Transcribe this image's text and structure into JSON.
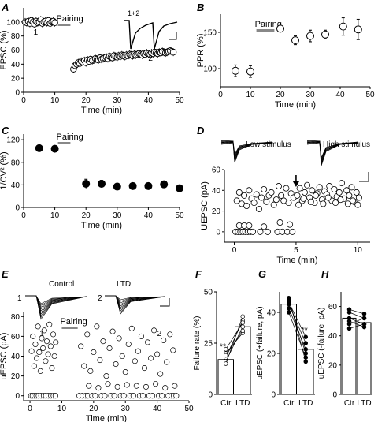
{
  "figure": {
    "panel_letters": [
      "A",
      "B",
      "C",
      "D",
      "E",
      "F",
      "G",
      "H"
    ],
    "pairing_label": "Pairing"
  },
  "chart_data": [
    {
      "id": "A",
      "type": "scatter",
      "title": "",
      "xlabel": "Time (min)",
      "ylabel": "EPSC (%)",
      "xlim": [
        0,
        50
      ],
      "ylim": [
        0,
        120
      ],
      "xticks": [
        0,
        10,
        20,
        30,
        40,
        50
      ],
      "yticks": [
        0,
        20,
        40,
        60,
        80,
        100
      ],
      "pairing": [
        11,
        15
      ],
      "annotations": [
        "1",
        "2"
      ],
      "inset_label": "1+2",
      "series": [
        {
          "x": [
            0.5,
            1,
            1.5,
            2,
            2.5,
            3,
            3.5,
            4,
            4.5,
            5,
            5.5,
            6,
            6.5,
            7,
            7.5,
            8,
            8.5,
            9,
            9.5,
            10,
            16,
            16.5,
            17,
            17.5,
            18,
            18.5,
            19,
            19.5,
            20,
            20.5,
            21,
            21.5,
            22,
            22.5,
            23,
            23.5,
            24,
            24.5,
            25,
            25.5,
            26,
            26.5,
            27,
            27.5,
            28,
            28.5,
            29,
            29.5,
            30,
            30.5,
            31,
            31.5,
            32,
            32.5,
            33,
            33.5,
            34,
            34.5,
            35,
            35.5,
            36,
            36.5,
            37,
            37.5,
            38,
            38.5,
            39,
            39.5,
            40,
            40.5,
            41,
            41.5,
            42,
            42.5,
            43,
            43.5,
            44,
            44.5,
            45,
            45.5,
            46,
            46.5,
            47,
            47.5,
            48
          ],
          "y": [
            100,
            99,
            101,
            98,
            102,
            100,
            97,
            101,
            99,
            100,
            103,
            98,
            100,
            101,
            99,
            102,
            98,
            100,
            101,
            99,
            33,
            38,
            40,
            42,
            41,
            44,
            43,
            45,
            42,
            46,
            44,
            47,
            45,
            46,
            48,
            47,
            46,
            49,
            47,
            48,
            49,
            50,
            48,
            51,
            50,
            49,
            52,
            51,
            50,
            52,
            51,
            53,
            52,
            51,
            53,
            52,
            54,
            53,
            52,
            54,
            53,
            54,
            55,
            54,
            53,
            55,
            54,
            56,
            55,
            54,
            56,
            55,
            57,
            56,
            55,
            57,
            56,
            58,
            57,
            56,
            57,
            58,
            59,
            58,
            57
          ]
        }
      ]
    },
    {
      "id": "B",
      "type": "scatter",
      "title": "",
      "xlabel": "Time (min)",
      "ylabel": "PPR (%)",
      "xlim": [
        0,
        50
      ],
      "ylim": [
        75,
        175
      ],
      "xticks": [
        0,
        10,
        20,
        30,
        40,
        50
      ],
      "yticks": [
        100,
        150
      ],
      "pairing": [
        12,
        18
      ],
      "series": [
        {
          "x": [
            5,
            10,
            20,
            25,
            30,
            35,
            41,
            46
          ],
          "y": [
            97,
            96,
            155,
            139,
            145,
            147,
            158,
            154
          ],
          "err": [
            8,
            8,
            3,
            6,
            8,
            6,
            12,
            14
          ]
        }
      ]
    },
    {
      "id": "C",
      "type": "scatter",
      "title": "",
      "xlabel": "Time (min)",
      "ylabel": "1/CV² (%)",
      "xlim": [
        0,
        50
      ],
      "ylim": [
        0,
        130
      ],
      "xticks": [
        0,
        10,
        20,
        30,
        40,
        50
      ],
      "yticks": [
        0,
        40,
        80,
        120
      ],
      "pairing": [
        11,
        15
      ],
      "series": [
        {
          "x": [
            5,
            10,
            20,
            25,
            30,
            35,
            40,
            45,
            50
          ],
          "y": [
            105,
            104,
            42,
            42,
            37,
            38,
            38,
            41,
            34
          ],
          "err": [
            5,
            4,
            8,
            6,
            5,
            5,
            5,
            5,
            4
          ]
        }
      ]
    },
    {
      "id": "D",
      "type": "scatter",
      "title": "",
      "xlabel": "Time (min)",
      "ylabel": "UEPSC (pA)",
      "xlim": [
        -0.8,
        11
      ],
      "ylim": [
        -10,
        60
      ],
      "xticks": [
        0,
        5,
        10
      ],
      "yticks": [
        0,
        20,
        40,
        60
      ],
      "trace_labels": [
        "Low stimulus",
        "High stimulus"
      ],
      "arrow_at": 5,
      "series": [
        {
          "name": "low_responses",
          "x": [
            0.2,
            0.4,
            0.6,
            0.8,
            1,
            1.2,
            1.4,
            1.6,
            1.8,
            2,
            2.2,
            2.4,
            2.6,
            2.8,
            3,
            3.2,
            3.4,
            3.6,
            3.8,
            4,
            4.2,
            4.4,
            4.6,
            4.8
          ],
          "y": [
            30,
            38,
            27,
            35,
            25,
            40,
            32,
            28,
            36,
            22,
            33,
            41,
            29,
            35,
            38,
            26,
            31,
            44,
            35,
            30,
            42,
            28,
            37,
            33
          ]
        },
        {
          "name": "low_failures",
          "x": [
            0.1,
            0.3,
            0.5,
            0.7,
            0.9,
            1.1,
            1.3,
            1.5,
            2.1,
            2.7,
            3.5,
            3.9,
            4.3,
            4.7,
            0.4,
            0.8,
            1.2,
            2.4,
            3.7,
            4.5
          ],
          "y": [
            0,
            0,
            0,
            0,
            0,
            0,
            0,
            0,
            0,
            0,
            0,
            0,
            0,
            0,
            6,
            6,
            6,
            5,
            9,
            7
          ]
        },
        {
          "name": "high_responses",
          "x": [
            5.1,
            5.3,
            5.5,
            5.7,
            5.9,
            6.1,
            6.3,
            6.5,
            6.7,
            6.9,
            7.1,
            7.3,
            7.5,
            7.7,
            7.9,
            8.1,
            8.3,
            8.5,
            8.7,
            8.9,
            9.1,
            9.3,
            9.5,
            9.7,
            9.9,
            10.1,
            5.2,
            5.6,
            6.2,
            6.6,
            7.2,
            7.6,
            8.2,
            8.6,
            9.2,
            9.6,
            10.0
          ],
          "y": [
            35,
            42,
            30,
            38,
            45,
            33,
            40,
            28,
            37,
            43,
            31,
            39,
            36,
            44,
            30,
            41,
            34,
            38,
            47,
            32,
            40,
            35,
            43,
            29,
            38,
            33,
            26,
            32,
            29,
            35,
            27,
            33,
            28,
            31,
            27,
            30,
            26
          ]
        }
      ]
    },
    {
      "id": "E",
      "type": "scatter",
      "title": "",
      "xlabel": "Time (min)",
      "ylabel": "uEPSC (pA)",
      "xlim": [
        -2,
        50
      ],
      "ylim": [
        -5,
        85
      ],
      "xticks": [
        0,
        10,
        20,
        30,
        40,
        50
      ],
      "yticks": [
        0,
        20,
        40,
        60,
        80
      ],
      "pairing": [
        10,
        15
      ],
      "trace_labels": [
        "Control",
        "LTD"
      ],
      "annotations": [
        "1",
        "2"
      ],
      "series": [
        {
          "name": "control",
          "x": [
            0.5,
            0.9,
            1.3,
            1.7,
            2.1,
            2.5,
            2.9,
            3.3,
            3.7,
            4.1,
            4.5,
            4.9,
            5.3,
            5.7,
            6.1,
            6.5,
            6.9,
            7.3,
            7.7,
            8.1
          ],
          "y": [
            45,
            60,
            30,
            52,
            38,
            70,
            44,
            25,
            58,
            48,
            66,
            35,
            55,
            42,
            72,
            50,
            28,
            62,
            40,
            54
          ]
        },
        {
          "name": "control_failures",
          "x": [
            0.3,
            0.8,
            1.4,
            2.0,
            2.7,
            3.5,
            4.3,
            5.0,
            5.8,
            6.6,
            7.4,
            8.0
          ],
          "y": [
            0,
            0,
            0,
            0,
            0,
            0,
            0,
            0,
            0,
            0,
            0,
            0
          ]
        },
        {
          "name": "ltd",
          "x": [
            16,
            17,
            18,
            19,
            20,
            21,
            22,
            23,
            24,
            25,
            26,
            27,
            28,
            29,
            30,
            31,
            32,
            33,
            34,
            35,
            36,
            37,
            38,
            39,
            40,
            41,
            42,
            43,
            44,
            45,
            18.5,
            21.5,
            24.5,
            27.5,
            30.5,
            33.5,
            36.5,
            39.5,
            42.5,
            45.5
          ],
          "y": [
            50,
            30,
            62,
            25,
            44,
            70,
            36,
            55,
            20,
            48,
            65,
            32,
            58,
            40,
            24,
            52,
            68,
            35,
            45,
            60,
            28,
            54,
            38,
            66,
            42,
            22,
            56,
            34,
            62,
            46,
            10,
            8,
            12,
            9,
            11,
            10,
            9,
            12,
            8,
            10
          ]
        },
        {
          "name": "ltd_failures",
          "x": [
            15.5,
            16.5,
            17.5,
            18.2,
            19.5,
            20.5,
            22.5,
            23.5,
            25.5,
            26.5,
            28.5,
            29.5,
            31.5,
            32.5,
            34.5,
            35.5,
            37.5,
            38.5,
            40.5,
            41.5,
            43.5,
            44.5,
            45.2,
            46
          ],
          "y": [
            0,
            0,
            0,
            0,
            0,
            0,
            0,
            0,
            0,
            0,
            0,
            0,
            0,
            0,
            0,
            0,
            0,
            0,
            0,
            0,
            0,
            0,
            0,
            0
          ]
        }
      ]
    },
    {
      "id": "F",
      "type": "bar",
      "title": "",
      "ylabel": "Failure rate (%)",
      "categories": [
        "Ctr",
        "LTD"
      ],
      "values": [
        17,
        33
      ],
      "ylim": [
        0,
        50
      ],
      "yticks": [
        0,
        25,
        50
      ],
      "paired": [
        [
          16,
          33
        ],
        [
          18,
          36
        ],
        [
          20,
          30
        ],
        [
          22,
          35
        ],
        [
          15,
          38
        ],
        [
          19,
          31
        ]
      ],
      "significance": "**"
    },
    {
      "id": "G",
      "type": "bar",
      "title": "",
      "ylabel": "uEPSC (+failure, pA)",
      "categories": [
        "Ctr",
        "LTD"
      ],
      "values": [
        44,
        22
      ],
      "ylim": [
        0,
        50
      ],
      "yticks": [
        0,
        20,
        40
      ],
      "paired": [
        [
          46,
          20
        ],
        [
          44,
          25
        ],
        [
          47,
          16
        ],
        [
          42,
          22
        ],
        [
          45,
          28
        ],
        [
          40,
          18
        ]
      ],
      "significance": "**"
    },
    {
      "id": "H",
      "type": "bar",
      "title": "",
      "ylabel": "uEPSC (-failure, pA)",
      "categories": [
        "Ctr",
        "LTD"
      ],
      "values": [
        52,
        49
      ],
      "ylim": [
        0,
        70
      ],
      "yticks": [
        0,
        20,
        40,
        60
      ],
      "paired": [
        [
          56,
          52
        ],
        [
          52,
          48
        ],
        [
          48,
          52
        ],
        [
          58,
          55
        ],
        [
          50,
          46
        ],
        [
          45,
          48
        ]
      ]
    }
  ]
}
